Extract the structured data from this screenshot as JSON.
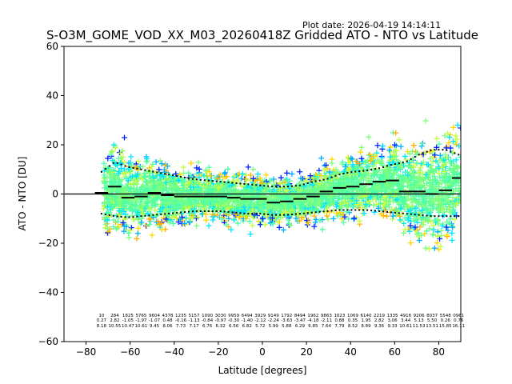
{
  "chart_data": {
    "type": "scatter",
    "title": "S-O3M_GOME_VOD_XX_M03_20260418Z Gridded ATO - NTO vs Latitude",
    "plot_date": "Plot date: 2026-04-19 14:14:11",
    "xlabel": "Latitude [degrees]",
    "ylabel": "ATO - NTO [DU]",
    "xlim": [
      -90,
      90
    ],
    "ylim": [
      -60,
      60
    ],
    "xticks": [
      -80,
      -60,
      -40,
      -20,
      0,
      20,
      40,
      60,
      80
    ],
    "yticks": [
      -60,
      -40,
      -20,
      0,
      20,
      40,
      60
    ],
    "xtick_labels": [
      "−80",
      "−60",
      "−40",
      "−20",
      "0",
      "20",
      "40",
      "60",
      "80"
    ],
    "ytick_labels": [
      "−60",
      "−40",
      "−20",
      "0",
      "20",
      "40",
      "60"
    ],
    "zero_line": 0,
    "point_colors": [
      "#0022ff",
      "#00b0ff",
      "#00e5ff",
      "#4dffa6",
      "#7dff7a",
      "#c4ff3d",
      "#ffd600",
      "#ffb000"
    ],
    "envelope": {
      "lat": [
        -73,
        -67,
        -61,
        -55,
        -49,
        -43,
        -37,
        -31,
        -25,
        -19,
        -13,
        -7,
        -1,
        5,
        11,
        17,
        23,
        29,
        35,
        41,
        47,
        53,
        59,
        65,
        71,
        77,
        83,
        89
      ],
      "upper": [
        9,
        13,
        11,
        10,
        9,
        8,
        7,
        6,
        5.5,
        5,
        4.5,
        4,
        3.5,
        3,
        3,
        3.5,
        5,
        6,
        8,
        9,
        9.5,
        10.5,
        12,
        13,
        16,
        18,
        18,
        16
      ],
      "lower": [
        -8,
        -9,
        -9.5,
        -9,
        -8.5,
        -8,
        -7.5,
        -7,
        -7,
        -7,
        -7.5,
        -8,
        -8,
        -8.5,
        -8.5,
        -8,
        -7.5,
        -7,
        -6.5,
        -6.5,
        -6.5,
        -7,
        -7.5,
        -8,
        -8.5,
        -9,
        -9,
        -9
      ]
    },
    "mean": {
      "lat": [
        -73,
        -67,
        -61,
        -55,
        -49,
        -43,
        -37,
        -31,
        -25,
        -19,
        -13,
        -7,
        -1,
        5,
        11,
        17,
        23,
        29,
        35,
        41,
        47,
        53,
        59,
        65,
        71,
        77,
        83,
        89
      ],
      "values": [
        0.5,
        3,
        -1.5,
        -1,
        0.5,
        -0.5,
        -1,
        -1,
        -1,
        -1,
        -1.5,
        -2,
        -2,
        -3.5,
        -3,
        -2,
        -1,
        1,
        2.5,
        3,
        4,
        5,
        5.5,
        1,
        1,
        0,
        1.5,
        6.5
      ]
    },
    "bin_stats": [
      {
        "lat": -73,
        "l1": "10",
        "l2": "0.27",
        "l3": "8.18"
      },
      {
        "lat": -67,
        "l1": "284",
        "l2": "2.82",
        "l3": "10.55"
      },
      {
        "lat": -61,
        "l1": "1825",
        "l2": "-1.05",
        "l3": "10.47"
      },
      {
        "lat": -55,
        "l1": "5765",
        "l2": "-1.97",
        "l3": "10.61"
      },
      {
        "lat": -49,
        "l1": "9604",
        "l2": "-1.07",
        "l3": "9.45"
      },
      {
        "lat": -43,
        "l1": "4378",
        "l2": "0.48",
        "l3": "8.06"
      },
      {
        "lat": -37,
        "l1": "1235",
        "l2": "-0.16",
        "l3": "7.73"
      },
      {
        "lat": -31,
        "l1": "5157",
        "l2": "-1.13",
        "l3": "7.17"
      },
      {
        "lat": -25,
        "l1": "1090",
        "l2": "-0.84",
        "l3": "6.76"
      },
      {
        "lat": -19,
        "l1": "3030",
        "l2": "-0.97",
        "l3": "6.32"
      },
      {
        "lat": -13,
        "l1": "9959",
        "l2": "-0.30",
        "l3": "6.56"
      },
      {
        "lat": -7,
        "l1": "6494",
        "l2": "-1.40",
        "l3": "6.82"
      },
      {
        "lat": -1,
        "l1": "3929",
        "l2": "-2.12",
        "l3": "5.72"
      },
      {
        "lat": 5,
        "l1": "9149",
        "l2": "-2.24",
        "l3": "5.99"
      },
      {
        "lat": 11,
        "l1": "1792",
        "l2": "-3.63",
        "l3": "5.88"
      },
      {
        "lat": 17,
        "l1": "8494",
        "l2": "-3.47",
        "l3": "6.29"
      },
      {
        "lat": 23,
        "l1": "1962",
        "l2": "-4.18",
        "l3": "6.85"
      },
      {
        "lat": 29,
        "l1": "9863",
        "l2": "-2.11",
        "l3": "7.64"
      },
      {
        "lat": 35,
        "l1": "1023",
        "l2": "0.88",
        "l3": "7.79"
      },
      {
        "lat": 41,
        "l1": "1069",
        "l2": "0.35",
        "l3": "8.52"
      },
      {
        "lat": 47,
        "l1": "6140",
        "l2": "1.95",
        "l3": "8.89"
      },
      {
        "lat": 53,
        "l1": "2219",
        "l2": "2.82",
        "l3": "9.36"
      },
      {
        "lat": 59,
        "l1": "1335",
        "l2": "3.06",
        "l3": "9.33"
      },
      {
        "lat": 65,
        "l1": "4916",
        "l2": "3.44",
        "l3": "10.61"
      },
      {
        "lat": 71,
        "l1": "9206",
        "l2": "5.13",
        "l3": "11.53"
      },
      {
        "lat": 77,
        "l1": "8037",
        "l2": "5.50",
        "l3": "13.51"
      },
      {
        "lat": 83,
        "l1": "5548",
        "l2": "0.26",
        "l3": "15.85"
      },
      {
        "lat": 89,
        "l1": "0961",
        "l2": "0.76",
        "l3": "16.11"
      }
    ]
  }
}
